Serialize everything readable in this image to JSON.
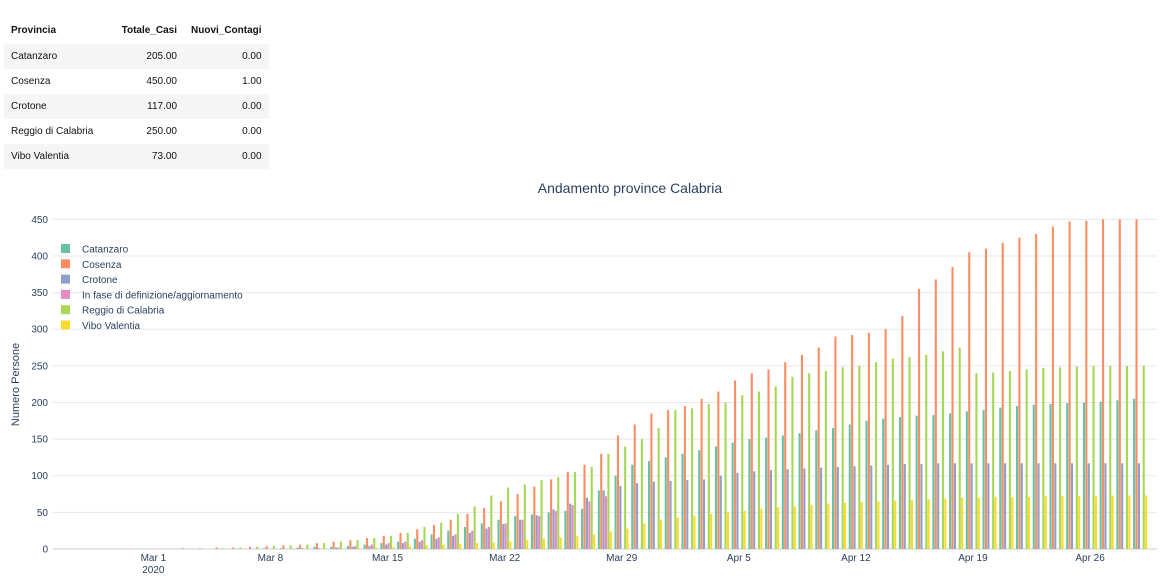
{
  "table": {
    "headers": [
      "Provincia",
      "Totale_Casi",
      "Nuovi_Contagi"
    ],
    "rows": [
      [
        "Catanzaro",
        "205.00",
        "0.00"
      ],
      [
        "Cosenza",
        "450.00",
        "1.00"
      ],
      [
        "Crotone",
        "117.00",
        "0.00"
      ],
      [
        "Reggio di Calabria",
        "250.00",
        "0.00"
      ],
      [
        "Vibo Valentia",
        "73.00",
        "0.00"
      ]
    ]
  },
  "chart_data": {
    "type": "bar",
    "title": "Andamento province Calabria",
    "xlabel": "",
    "ylabel": "Numero Persone",
    "ylim": [
      0,
      460
    ],
    "yticks": [
      0,
      50,
      100,
      150,
      200,
      250,
      300,
      350,
      400,
      450
    ],
    "grid": true,
    "legend_position": "left",
    "xrange": [
      "2020-02-24",
      "2020-04-30"
    ],
    "xticks": [
      {
        "date": "2020-03-01",
        "label": "Mar 1",
        "sublabel": "2020"
      },
      {
        "date": "2020-03-08",
        "label": "Mar 8",
        "sublabel": ""
      },
      {
        "date": "2020-03-15",
        "label": "Mar 15",
        "sublabel": ""
      },
      {
        "date": "2020-03-22",
        "label": "Mar 22",
        "sublabel": ""
      },
      {
        "date": "2020-03-29",
        "label": "Mar 29",
        "sublabel": ""
      },
      {
        "date": "2020-04-05",
        "label": "Apr 5",
        "sublabel": ""
      },
      {
        "date": "2020-04-12",
        "label": "Apr 12",
        "sublabel": ""
      },
      {
        "date": "2020-04-19",
        "label": "Apr 19",
        "sublabel": ""
      },
      {
        "date": "2020-04-26",
        "label": "Apr 26",
        "sublabel": ""
      }
    ],
    "x": [
      "2020-02-24",
      "2020-02-25",
      "2020-02-26",
      "2020-02-27",
      "2020-02-28",
      "2020-02-29",
      "2020-03-01",
      "2020-03-02",
      "2020-03-03",
      "2020-03-04",
      "2020-03-05",
      "2020-03-06",
      "2020-03-07",
      "2020-03-08",
      "2020-03-09",
      "2020-03-10",
      "2020-03-11",
      "2020-03-12",
      "2020-03-13",
      "2020-03-14",
      "2020-03-15",
      "2020-03-16",
      "2020-03-17",
      "2020-03-18",
      "2020-03-19",
      "2020-03-20",
      "2020-03-21",
      "2020-03-22",
      "2020-03-23",
      "2020-03-24",
      "2020-03-25",
      "2020-03-26",
      "2020-03-27",
      "2020-03-28",
      "2020-03-29",
      "2020-03-30",
      "2020-03-31",
      "2020-04-01",
      "2020-04-02",
      "2020-04-03",
      "2020-04-04",
      "2020-04-05",
      "2020-04-06",
      "2020-04-07",
      "2020-04-08",
      "2020-04-09",
      "2020-04-10",
      "2020-04-11",
      "2020-04-12",
      "2020-04-13",
      "2020-04-14",
      "2020-04-15",
      "2020-04-16",
      "2020-04-17",
      "2020-04-18",
      "2020-04-19",
      "2020-04-20",
      "2020-04-21",
      "2020-04-22",
      "2020-04-23",
      "2020-04-24",
      "2020-04-25",
      "2020-04-26",
      "2020-04-27",
      "2020-04-28",
      "2020-04-29"
    ],
    "series": [
      {
        "name": "Catanzaro",
        "color": "#66c2a5",
        "values": [
          0,
          0,
          0,
          0,
          0,
          0,
          0,
          0,
          0,
          0,
          0,
          0,
          0,
          1,
          1,
          2,
          3,
          3,
          4,
          6,
          8,
          10,
          14,
          20,
          25,
          30,
          35,
          40,
          45,
          47,
          50,
          52,
          55,
          80,
          100,
          115,
          120,
          125,
          130,
          135,
          140,
          145,
          150,
          152,
          155,
          158,
          162,
          165,
          170,
          175,
          178,
          180,
          182,
          183,
          185,
          188,
          190,
          193,
          195,
          197,
          198,
          199,
          200,
          201,
          203,
          205
        ]
      },
      {
        "name": "Cosenza",
        "color": "#fc8d62",
        "values": [
          0,
          0,
          0,
          0,
          0,
          0,
          0,
          0,
          1,
          1,
          2,
          2,
          3,
          4,
          5,
          6,
          8,
          10,
          12,
          15,
          18,
          22,
          27,
          33,
          40,
          48,
          56,
          65,
          75,
          85,
          95,
          105,
          115,
          130,
          155,
          170,
          185,
          190,
          195,
          205,
          215,
          230,
          240,
          245,
          255,
          265,
          275,
          290,
          292,
          295,
          300,
          318,
          355,
          368,
          385,
          405,
          410,
          418,
          425,
          430,
          440,
          447,
          448,
          450,
          450,
          450
        ]
      },
      {
        "name": "Crotone",
        "color": "#8da0cb",
        "values": [
          0,
          0,
          0,
          0,
          0,
          0,
          0,
          0,
          0,
          0,
          0,
          0,
          0,
          0,
          0,
          1,
          1,
          2,
          3,
          4,
          6,
          8,
          10,
          14,
          18,
          22,
          28,
          34,
          40,
          46,
          54,
          62,
          70,
          80,
          86,
          90,
          92,
          93,
          94,
          95,
          100,
          104,
          106,
          108,
          109,
          110,
          111,
          112,
          113,
          114,
          115,
          116,
          116,
          117,
          117,
          117,
          117,
          117,
          117,
          117,
          117,
          117,
          117,
          117,
          117,
          117
        ]
      },
      {
        "name": "In fase di definizione/aggiornamento",
        "color": "#e78ac3",
        "values": [
          0,
          0,
          0,
          0,
          0,
          0,
          0,
          0,
          0,
          0,
          0,
          0,
          0,
          0,
          0,
          0,
          0,
          2,
          4,
          6,
          8,
          10,
          12,
          16,
          20,
          25,
          30,
          35,
          40,
          45,
          52,
          60,
          65,
          72,
          0,
          0,
          0,
          0,
          0,
          0,
          0,
          0,
          0,
          0,
          0,
          0,
          0,
          0,
          0,
          0,
          0,
          0,
          0,
          0,
          0,
          0,
          0,
          0,
          0,
          0,
          0,
          0,
          0,
          0,
          0,
          0
        ]
      },
      {
        "name": "Reggio di Calabria",
        "color": "#a6d854",
        "values": [
          0,
          0,
          0,
          0,
          0,
          0,
          0,
          0,
          0,
          0,
          1,
          2,
          3,
          4,
          5,
          6,
          8,
          10,
          12,
          15,
          18,
          22,
          30,
          36,
          48,
          58,
          73,
          84,
          88,
          94,
          98,
          105,
          112,
          130,
          140,
          150,
          165,
          190,
          192,
          198,
          200,
          210,
          215,
          222,
          235,
          240,
          243,
          248,
          250,
          255,
          260,
          262,
          265,
          270,
          275,
          240,
          241,
          243,
          245,
          247,
          248,
          249,
          250,
          250,
          250,
          250
        ]
      },
      {
        "name": "Vibo Valentia",
        "color": "#ffd92f",
        "values": [
          0,
          0,
          0,
          0,
          0,
          0,
          0,
          0,
          0,
          0,
          0,
          0,
          0,
          0,
          0,
          0,
          0,
          0,
          1,
          2,
          3,
          4,
          5,
          6,
          7,
          8,
          9,
          10,
          12,
          14,
          16,
          18,
          20,
          24,
          28,
          35,
          40,
          43,
          45,
          48,
          50,
          52,
          55,
          57,
          58,
          60,
          62,
          63,
          64,
          65,
          66,
          67,
          68,
          69,
          70,
          70,
          71,
          71,
          71,
          72,
          72,
          72,
          72,
          73,
          73,
          73
        ]
      }
    ]
  }
}
